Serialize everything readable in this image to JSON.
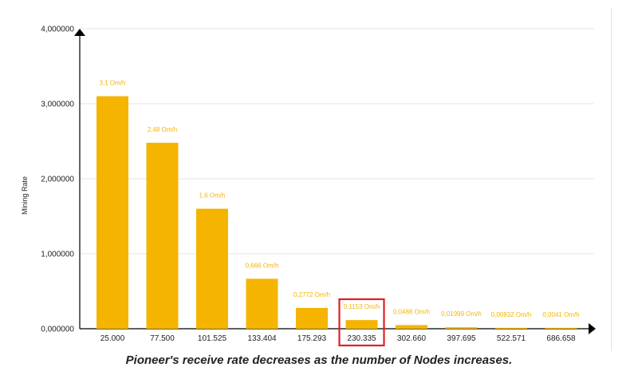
{
  "chart_data": {
    "type": "bar",
    "ylabel": "Mining Rate",
    "xlabel": "",
    "categories": [
      "25.000",
      "77.500",
      "101.525",
      "133.404",
      "175.293",
      "230.335",
      "302.660",
      "397.695",
      "522.571",
      "686.658"
    ],
    "values": [
      3.1,
      2.48,
      1.6,
      0.666,
      0.2772,
      0.1153,
      0.0488,
      0.01999,
      0.00832,
      0.0041
    ],
    "data_labels": [
      "3,1 Om/h",
      "2,48 Om/h",
      "1,6 Om/h",
      "0,666 Om/h",
      "0,2772 Om/h",
      "0,1153 Om/h",
      "0,0488 Om/h",
      "0,01999 Om/h",
      "0,00832 Om/h",
      "0,0041 Om/h"
    ],
    "y_ticks": [
      {
        "value": 0,
        "label": "0,000000"
      },
      {
        "value": 1,
        "label": "1,000000"
      },
      {
        "value": 2,
        "label": "2,000000"
      },
      {
        "value": 3,
        "label": "3,000000"
      },
      {
        "value": 4,
        "label": "4,000000"
      }
    ],
    "ylim": [
      0,
      4
    ],
    "grid": true,
    "highlighted_category": "230.335",
    "colors": {
      "bar": "#f5b400",
      "label": "#f5b400",
      "highlight": "#e02020",
      "grid": "#e6e6e6",
      "axis": "#000000"
    }
  },
  "caption": "Pioneer's receive rate decreases as the number of Nodes increases."
}
